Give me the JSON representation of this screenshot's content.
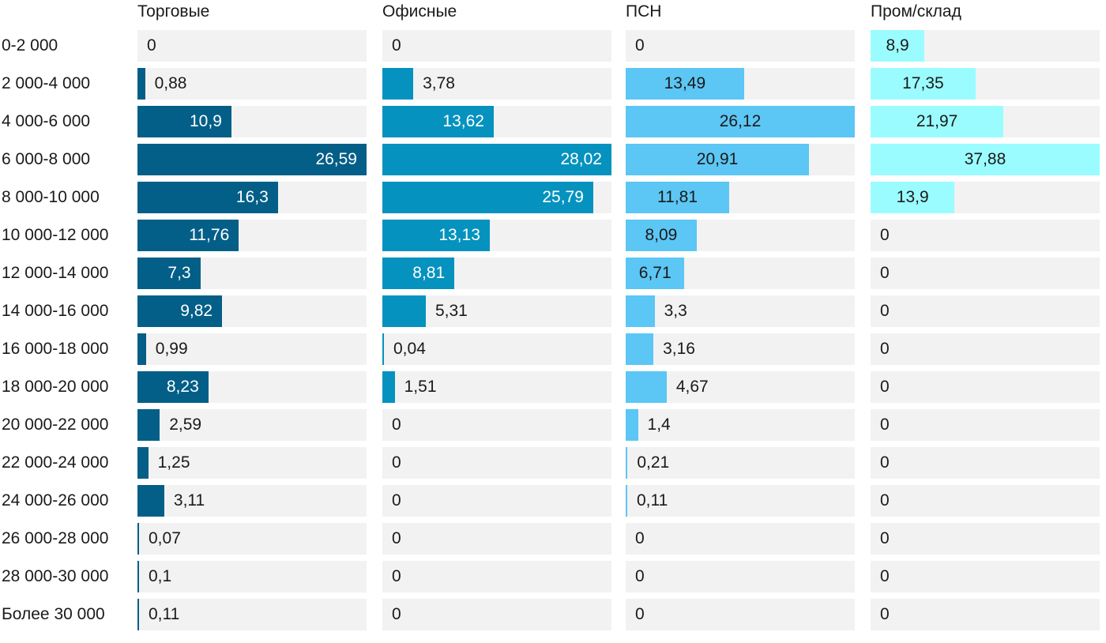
{
  "chart_data": {
    "type": "bar",
    "orientation": "horizontal",
    "layout": "small-multiples",
    "categories": [
      "0-2 000",
      "2 000-4 000",
      "4 000-6 000",
      "6 000-8 000",
      "8 000-10 000",
      "10 000-12 000",
      "12 000-14 000",
      "14 000-16 000",
      "16 000-18 000",
      "18 000-20 000",
      "20 000-22 000",
      "22 000-24 000",
      "24 000-26 000",
      "26 000-28 000",
      "28 000-30 000",
      "Более 30 000"
    ],
    "series": [
      {
        "name": "Торговые",
        "color": "#035f87",
        "values": [
          0,
          0.88,
          10.9,
          26.59,
          16.3,
          11.76,
          7.3,
          9.82,
          0.99,
          8.23,
          2.59,
          1.25,
          3.11,
          0.07,
          0.1,
          0.11
        ],
        "labels": [
          "0",
          "0,88",
          "10,9",
          "26,59",
          "16,3",
          "11,76",
          "7,3",
          "9,82",
          "0,99",
          "8,23",
          "2,59",
          "1,25",
          "3,11",
          "0,07",
          "0,1",
          "0,11"
        ]
      },
      {
        "name": "Офисные",
        "color": "#0592bf",
        "values": [
          0,
          3.78,
          13.62,
          28.02,
          25.79,
          13.13,
          8.81,
          5.31,
          0.04,
          1.51,
          0,
          0,
          0,
          0,
          0,
          0
        ],
        "labels": [
          "0",
          "3,78",
          "13,62",
          "28,02",
          "25,79",
          "13,13",
          "8,81",
          "5,31",
          "0,04",
          "1,51",
          "0",
          "0",
          "0",
          "0",
          "0",
          "0"
        ]
      },
      {
        "name": "ПСН",
        "color": "#5cc6f4",
        "values": [
          0,
          13.49,
          26.12,
          20.91,
          11.81,
          8.09,
          6.71,
          3.3,
          3.16,
          4.67,
          1.4,
          0.21,
          0.11,
          0,
          0,
          0
        ],
        "labels": [
          "0",
          "13,49",
          "26,12",
          "20,91",
          "11,81",
          "8,09",
          "6,71",
          "3,3",
          "3,16",
          "4,67",
          "1,4",
          "0,21",
          "0,11",
          "0",
          "0",
          "0"
        ]
      },
      {
        "name": "Пром/склад",
        "color": "#9bfcff",
        "values": [
          8.9,
          17.35,
          21.97,
          37.88,
          13.9,
          0,
          0,
          0,
          0,
          0,
          0,
          0,
          0,
          0,
          0,
          0
        ],
        "labels": [
          "8,9",
          "17,35",
          "21,97",
          "37,88",
          "13,9",
          "0",
          "0",
          "0",
          "0",
          "0",
          "0",
          "0",
          "0",
          "0",
          "0",
          "0"
        ]
      }
    ],
    "panel_max": [
      26.59,
      28.02,
      26.12,
      37.88
    ],
    "grid": false,
    "legend": "none"
  }
}
